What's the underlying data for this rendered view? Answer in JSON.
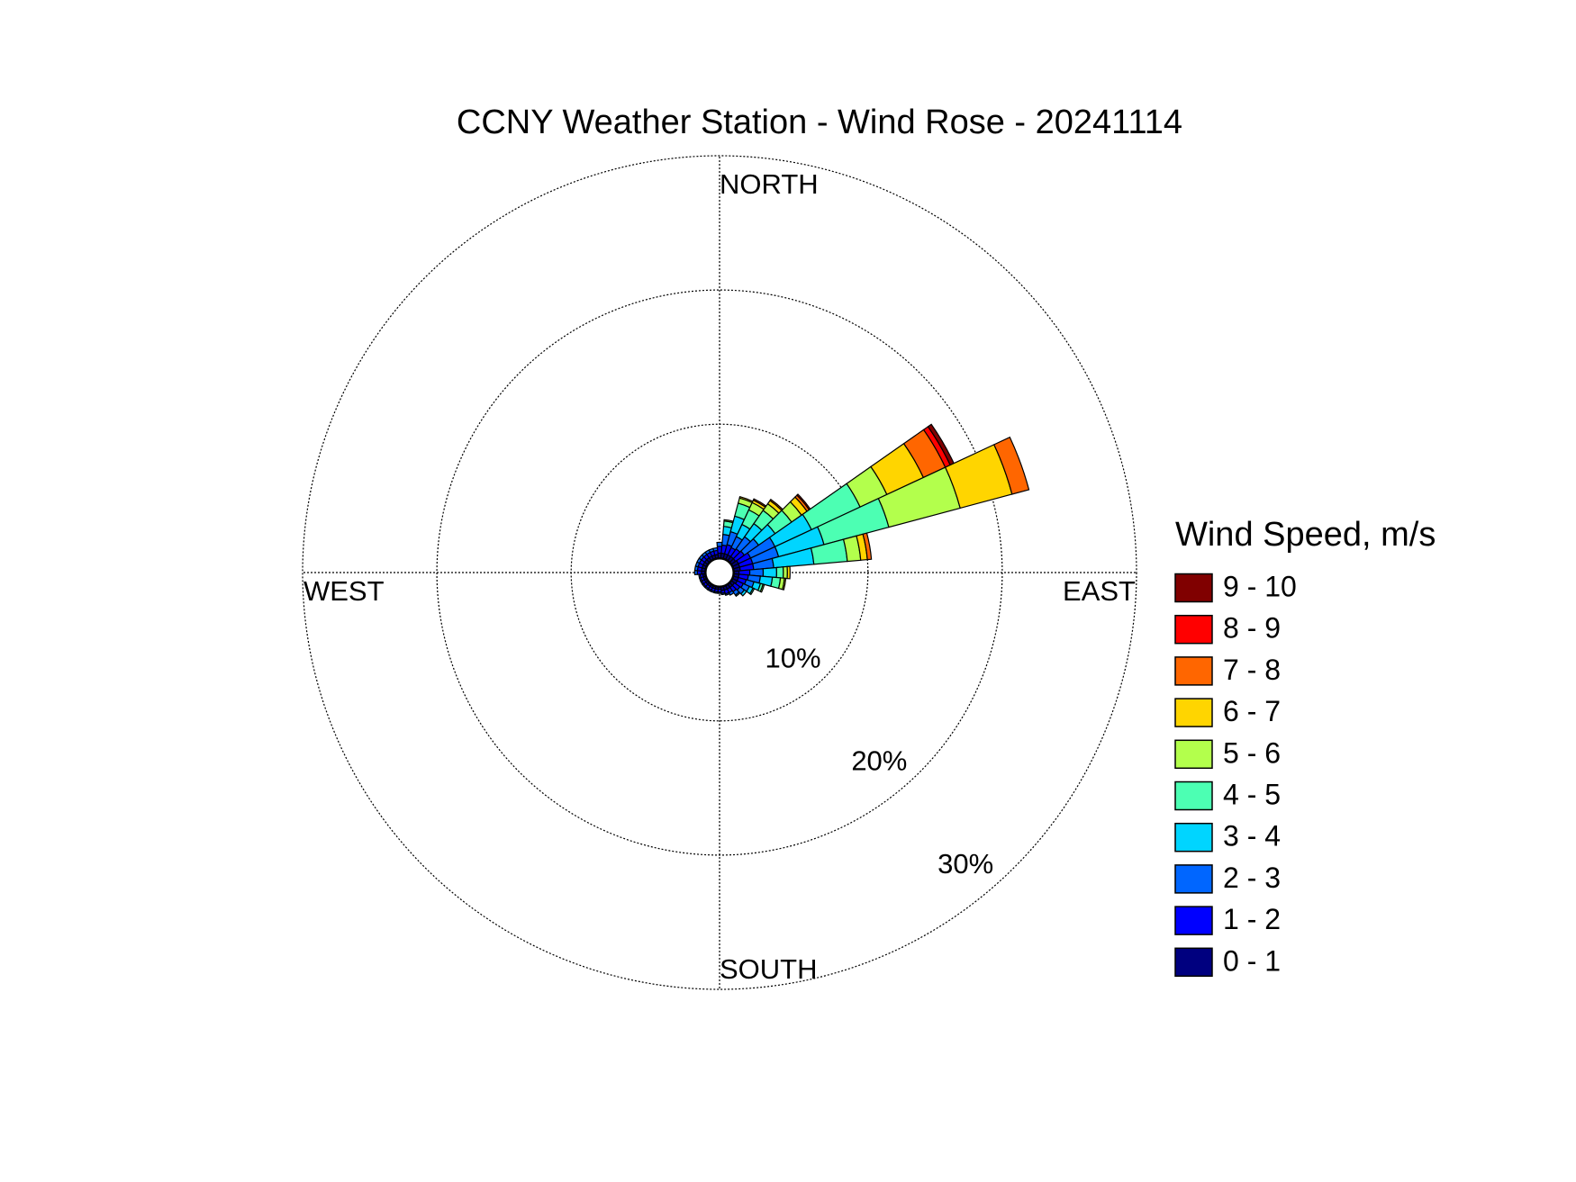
{
  "chart_data": {
    "type": "windrose",
    "title": "CCNY Weather Station - Wind Rose - 20241114",
    "labels": {
      "north": "NORTH",
      "south": "SOUTH",
      "east": "EAST",
      "west": "WEST"
    },
    "legend_title": "Wind Speed, m/s",
    "directions": [
      0,
      10,
      20,
      30,
      40,
      50,
      60,
      70,
      80,
      90,
      100,
      110,
      120,
      130,
      140,
      150,
      160,
      170,
      180,
      190,
      200,
      210,
      220,
      230,
      240,
      250,
      260,
      270,
      280,
      290,
      300,
      310,
      320,
      330,
      340,
      350
    ],
    "rlim": [
      0,
      30
    ],
    "rticks": [
      {
        "value": 10,
        "label": "10%"
      },
      {
        "value": 20,
        "label": "20%"
      },
      {
        "value": 30,
        "label": "30%"
      }
    ],
    "series": [
      {
        "name": "0 - 1",
        "color": "#00007f",
        "values": [
          0.4,
          0.4,
          0.4,
          0.4,
          0.4,
          0.4,
          0.5,
          0.5,
          0.5,
          0.4,
          0.4,
          0.4,
          0.4,
          0.3,
          0.3,
          0.3,
          0.3,
          0.3,
          0.2,
          0.2,
          0.2,
          0.2,
          0.2,
          0.2,
          0.2,
          0.2,
          0.2,
          0.3,
          0.3,
          0.3,
          0.3,
          0.3,
          0.3,
          0.3,
          0.3,
          0.3
        ]
      },
      {
        "name": "1 - 2",
        "color": "#0000ff",
        "values": [
          0.5,
          0.6,
          0.7,
          0.6,
          0.7,
          0.8,
          1,
          1,
          1,
          0.8,
          0.7,
          0.6,
          0.5,
          0.5,
          0.4,
          0.3,
          0.3,
          0.2,
          0.2,
          0.2,
          0.2,
          0.2,
          0.2,
          0.2,
          0.2,
          0.2,
          0.2,
          0.3,
          0.3,
          0.3,
          0.3,
          0.3,
          0.3,
          0.3,
          0.3,
          0.3
        ]
      },
      {
        "name": "2 - 3",
        "color": "#0066ff",
        "values": [
          0.3,
          0.8,
          1,
          0.9,
          1.1,
          1.3,
          2,
          2,
          1.5,
          1,
          0.9,
          0.6,
          0.5,
          0.4,
          0.3,
          0.2,
          0.1,
          0.1,
          0.1,
          0.1,
          0.1,
          0.1,
          0.1,
          0.1,
          0.1,
          0.1,
          0.1,
          0.2,
          0.2,
          0.2,
          0.2,
          0.2,
          0.2,
          0.2,
          0.2,
          0.2
        ]
      },
      {
        "name": "3 - 4",
        "color": "#00d5ff",
        "values": [
          0,
          0.6,
          1.2,
          1,
          1.2,
          1.5,
          3,
          3.5,
          3,
          1,
          0.9,
          0.5,
          0.3,
          0.2,
          0.1,
          0,
          0,
          0,
          0,
          0,
          0,
          0,
          0,
          0,
          0,
          0,
          0,
          0,
          0,
          0,
          0,
          0,
          0,
          0,
          0,
          0
        ]
      },
      {
        "name": "4 - 5",
        "color": "#4cffb3",
        "values": [
          0,
          0.4,
          1,
          1.2,
          1.2,
          1.5,
          4,
          5,
          2.5,
          0.5,
          0.6,
          0.2,
          0.1,
          0,
          0,
          0,
          0,
          0,
          0,
          0,
          0,
          0,
          0,
          0,
          0,
          0,
          0,
          0,
          0,
          0,
          0,
          0,
          0,
          0,
          0,
          0
        ]
      },
      {
        "name": "5 - 6",
        "color": "#b3ff4c",
        "values": [
          0,
          0.1,
          0.4,
          0.6,
          0.6,
          0.9,
          2.2,
          5.5,
          1,
          0.3,
          0.3,
          0.1,
          0,
          0,
          0,
          0,
          0,
          0,
          0,
          0,
          0,
          0,
          0,
          0,
          0,
          0,
          0,
          0,
          0,
          0,
          0,
          0,
          0,
          0,
          0,
          0
        ]
      },
      {
        "name": "6 - 7",
        "color": "#ffd500",
        "values": [
          0,
          0,
          0.1,
          0.2,
          0.3,
          0.5,
          3,
          4,
          0.5,
          0.2,
          0.1,
          0,
          0,
          0,
          0,
          0,
          0,
          0,
          0,
          0,
          0,
          0,
          0,
          0,
          0,
          0,
          0,
          0,
          0,
          0,
          0,
          0,
          0,
          0,
          0,
          0
        ]
      },
      {
        "name": "7 - 8",
        "color": "#ff6600",
        "values": [
          0,
          0,
          0,
          0.1,
          0.1,
          0.2,
          1.8,
          1.3,
          0.3,
          0,
          0,
          0,
          0,
          0,
          0,
          0,
          0,
          0,
          0,
          0,
          0,
          0,
          0,
          0,
          0,
          0,
          0,
          0,
          0,
          0,
          0,
          0,
          0,
          0,
          0,
          0
        ]
      },
      {
        "name": "8 - 9",
        "color": "#ff0000",
        "values": [
          0,
          0,
          0,
          0,
          0,
          0.1,
          0.4,
          0,
          0,
          0,
          0,
          0,
          0,
          0,
          0,
          0,
          0,
          0,
          0,
          0,
          0,
          0,
          0,
          0,
          0,
          0,
          0,
          0,
          0,
          0,
          0,
          0,
          0,
          0,
          0,
          0
        ]
      },
      {
        "name": "9 - 10",
        "color": "#800000",
        "values": [
          0,
          0,
          0,
          0,
          0,
          0,
          0.3,
          0,
          0,
          0,
          0,
          0,
          0,
          0,
          0,
          0,
          0,
          0,
          0,
          0,
          0,
          0,
          0,
          0,
          0,
          0,
          0,
          0,
          0,
          0,
          0,
          0,
          0,
          0,
          0,
          0
        ]
      }
    ]
  }
}
